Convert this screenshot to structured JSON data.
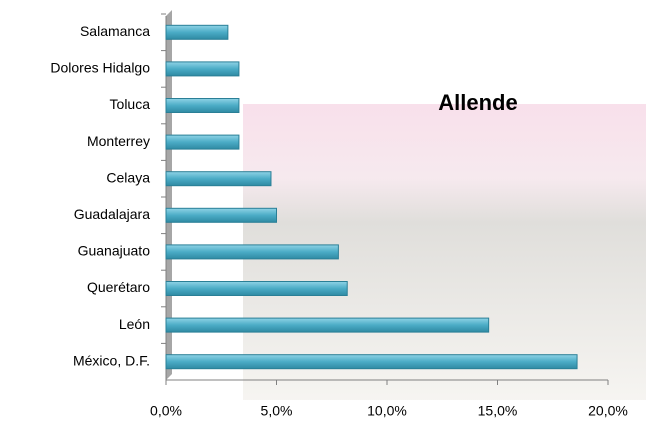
{
  "chart_data": {
    "type": "bar",
    "orientation": "horizontal",
    "title": "Allende",
    "categories": [
      "Salamanca",
      "Dolores Hidalgo",
      "Toluca",
      "Monterrey",
      "Celaya",
      "Guadalajara",
      "Guanajuato",
      "Querétaro",
      "León",
      "México, D.F."
    ],
    "values": [
      2.8,
      3.3,
      3.3,
      3.3,
      4.75,
      5.0,
      7.8,
      8.2,
      14.6,
      18.6
    ],
    "color": "#4bacc6",
    "xlim": [
      0,
      20
    ],
    "xticks": [
      {
        "value": 0,
        "label": "0,0%"
      },
      {
        "value": 5,
        "label": "5,0%"
      },
      {
        "value": 10,
        "label": "10,0%"
      },
      {
        "value": 15,
        "label": "15,0%"
      },
      {
        "value": 20,
        "label": "20,0%"
      }
    ],
    "grid": false
  }
}
